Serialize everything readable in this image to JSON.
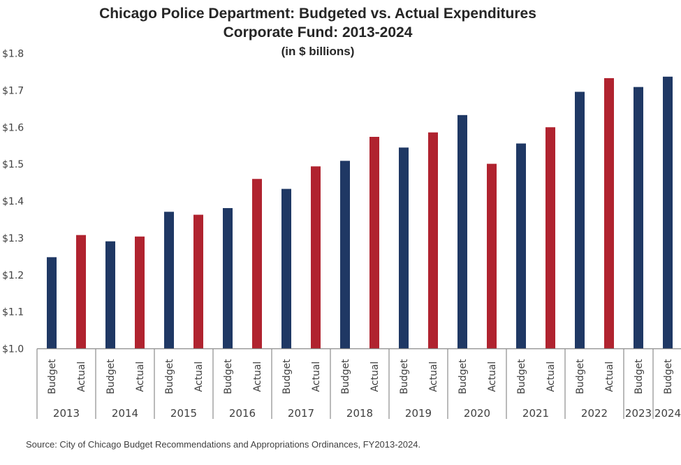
{
  "chart_data": {
    "type": "bar",
    "title": "Chicago Police Department: Budgeted vs. Actual Expenditures",
    "subtitle": "Corporate Fund: 2013-2024",
    "units_note": "(in $ billions)",
    "xlabel": "",
    "ylabel": "",
    "ylim": [
      1.0,
      1.8
    ],
    "yticks": [
      1.0,
      1.1,
      1.2,
      1.3,
      1.4,
      1.5,
      1.6,
      1.7,
      1.8
    ],
    "ytick_labels": [
      "$1.0",
      "$1.1",
      "$1.2",
      "$1.3",
      "$1.4",
      "$1.5",
      "$1.6",
      "$1.7",
      "$1.8"
    ],
    "grid": false,
    "legend": null,
    "colors": {
      "Budget": "#1f3864",
      "Actual": "#b0232f"
    },
    "groups": [
      {
        "year": "2013",
        "bars": [
          {
            "label": "Budget",
            "value": 1.248
          },
          {
            "label": "Actual",
            "value": 1.308
          }
        ]
      },
      {
        "year": "2014",
        "bars": [
          {
            "label": "Budget",
            "value": 1.291
          },
          {
            "label": "Actual",
            "value": 1.304
          }
        ]
      },
      {
        "year": "2015",
        "bars": [
          {
            "label": "Budget",
            "value": 1.371
          },
          {
            "label": "Actual",
            "value": 1.363
          }
        ]
      },
      {
        "year": "2016",
        "bars": [
          {
            "label": "Budget",
            "value": 1.381
          },
          {
            "label": "Actual",
            "value": 1.46
          }
        ]
      },
      {
        "year": "2017",
        "bars": [
          {
            "label": "Budget",
            "value": 1.433
          },
          {
            "label": "Actual",
            "value": 1.494
          }
        ]
      },
      {
        "year": "2018",
        "bars": [
          {
            "label": "Budget",
            "value": 1.509
          },
          {
            "label": "Actual",
            "value": 1.574
          }
        ]
      },
      {
        "year": "2019",
        "bars": [
          {
            "label": "Budget",
            "value": 1.545
          },
          {
            "label": "Actual",
            "value": 1.586
          }
        ]
      },
      {
        "year": "2020",
        "bars": [
          {
            "label": "Budget",
            "value": 1.633
          },
          {
            "label": "Actual",
            "value": 1.501
          }
        ]
      },
      {
        "year": "2021",
        "bars": [
          {
            "label": "Budget",
            "value": 1.556
          },
          {
            "label": "Actual",
            "value": 1.6
          }
        ]
      },
      {
        "year": "2022",
        "bars": [
          {
            "label": "Budget",
            "value": 1.696
          },
          {
            "label": "Actual",
            "value": 1.733
          }
        ]
      },
      {
        "year": "2023",
        "bars": [
          {
            "label": "Budget",
            "value": 1.709
          }
        ]
      },
      {
        "year": "2024",
        "bars": [
          {
            "label": "Budget",
            "value": 1.737
          }
        ]
      }
    ],
    "source": "Source: City of Chicago Budget Recommendations and Appropriations Ordinances, FY2013-2024."
  }
}
